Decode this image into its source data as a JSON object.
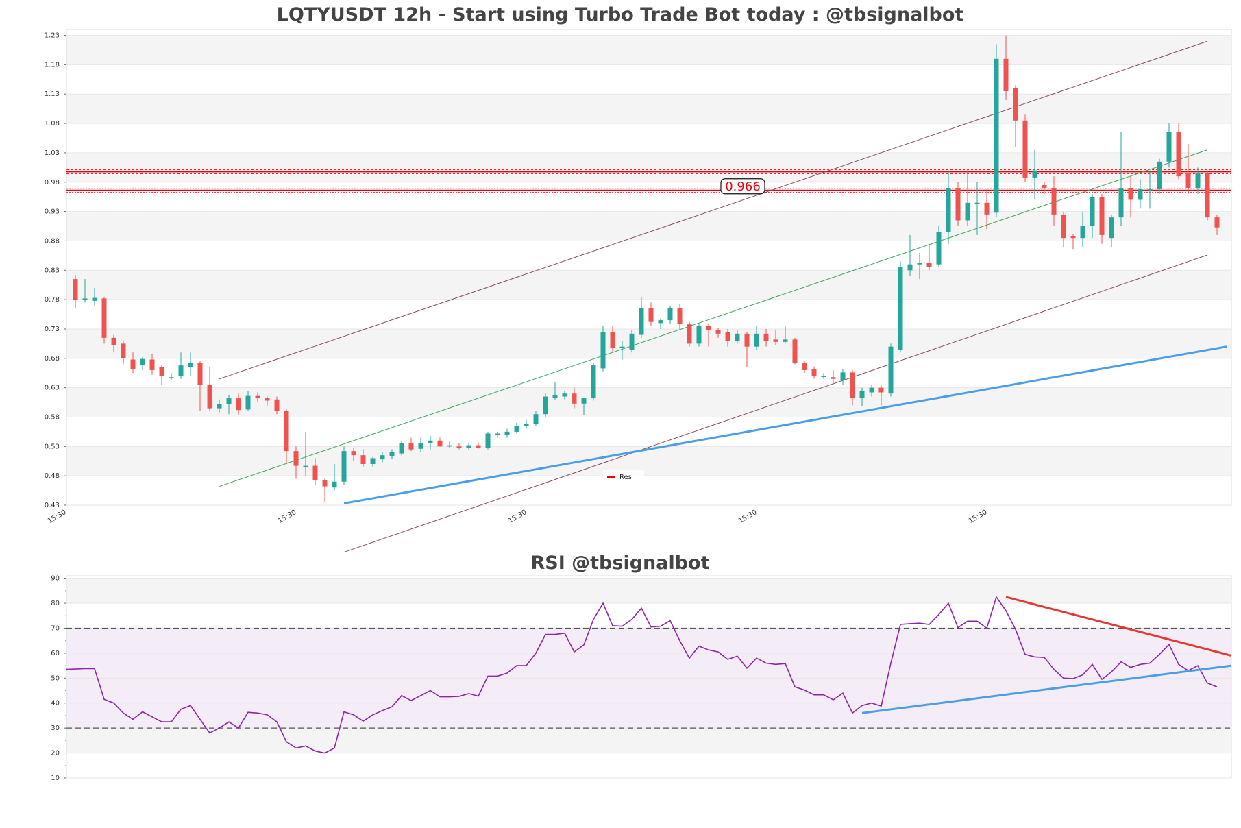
{
  "chart_data": [
    {
      "type": "candlestick",
      "title": "LQTYUSDT 12h - Start using Turbo Trade Bot today : @tbsignalbot",
      "ylim": [
        0.43,
        1.24
      ],
      "yticks": [
        "0.43",
        "0.48",
        "0.53",
        "0.58",
        "0.63",
        "0.68",
        "0.73",
        "0.78",
        "0.83",
        "0.88",
        "0.93",
        "0.98",
        "1.03",
        "1.08",
        "1.13",
        "1.18",
        "1.23"
      ],
      "xtick_labels": [
        "15:30",
        "15:30",
        "15:30",
        "15:30",
        "15:30"
      ],
      "xtick_index": [
        0,
        24,
        48,
        72,
        96
      ],
      "grid": true,
      "legend": {
        "placement": "lower-center",
        "entries": [
          "Res"
        ]
      },
      "resistance_label": "0.966",
      "resistance_levels": [
        0.966,
        0.998
      ],
      "colors": {
        "up": "#26a69a",
        "down": "#ef5350",
        "res": "#e8000b",
        "channel": "#8b4a5b",
        "mid": "#3aa655",
        "support": "#4a9ee8"
      },
      "candles": [
        [
          0.815,
          0.822,
          0.765,
          0.78
        ],
        [
          0.78,
          0.815,
          0.775,
          0.782
        ],
        [
          0.778,
          0.8,
          0.77,
          0.783
        ],
        [
          0.782,
          0.785,
          0.705,
          0.715
        ],
        [
          0.715,
          0.72,
          0.69,
          0.703
        ],
        [
          0.705,
          0.71,
          0.67,
          0.68
        ],
        [
          0.678,
          0.69,
          0.655,
          0.662
        ],
        [
          0.668,
          0.682,
          0.66,
          0.679
        ],
        [
          0.678,
          0.688,
          0.652,
          0.66
        ],
        [
          0.665,
          0.668,
          0.635,
          0.65
        ],
        [
          0.648,
          0.655,
          0.643,
          0.648
        ],
        [
          0.65,
          0.69,
          0.645,
          0.668
        ],
        [
          0.665,
          0.69,
          0.65,
          0.672
        ],
        [
          0.672,
          0.675,
          0.59,
          0.635
        ],
        [
          0.635,
          0.665,
          0.59,
          0.595
        ],
        [
          0.595,
          0.61,
          0.588,
          0.602
        ],
        [
          0.602,
          0.618,
          0.585,
          0.612
        ],
        [
          0.612,
          0.62,
          0.583,
          0.592
        ],
        [
          0.593,
          0.625,
          0.59,
          0.616
        ],
        [
          0.616,
          0.622,
          0.605,
          0.612
        ],
        [
          0.612,
          0.615,
          0.6,
          0.608
        ],
        [
          0.61,
          0.615,
          0.585,
          0.59
        ],
        [
          0.59,
          0.593,
          0.5,
          0.522
        ],
        [
          0.522,
          0.53,
          0.475,
          0.497
        ],
        [
          0.496,
          0.555,
          0.48,
          0.497
        ],
        [
          0.497,
          0.51,
          0.465,
          0.472
        ],
        [
          0.472,
          0.475,
          0.435,
          0.462
        ],
        [
          0.46,
          0.5,
          0.455,
          0.47
        ],
        [
          0.47,
          0.53,
          0.465,
          0.522
        ],
        [
          0.522,
          0.528,
          0.505,
          0.515
        ],
        [
          0.515,
          0.525,
          0.495,
          0.5
        ],
        [
          0.5,
          0.512,
          0.495,
          0.51
        ],
        [
          0.508,
          0.52,
          0.503,
          0.515
        ],
        [
          0.513,
          0.525,
          0.508,
          0.52
        ],
        [
          0.518,
          0.54,
          0.515,
          0.535
        ],
        [
          0.535,
          0.545,
          0.522,
          0.525
        ],
        [
          0.526,
          0.545,
          0.52,
          0.535
        ],
        [
          0.535,
          0.548,
          0.525,
          0.54
        ],
        [
          0.54,
          0.545,
          0.53,
          0.53
        ],
        [
          0.53,
          0.538,
          0.528,
          0.532
        ],
        [
          0.53,
          0.535,
          0.525,
          0.528
        ],
        [
          0.528,
          0.535,
          0.525,
          0.532
        ],
        [
          0.532,
          0.537,
          0.526,
          0.528
        ],
        [
          0.528,
          0.555,
          0.525,
          0.552
        ],
        [
          0.55,
          0.555,
          0.545,
          0.552
        ],
        [
          0.55,
          0.56,
          0.545,
          0.555
        ],
        [
          0.555,
          0.57,
          0.552,
          0.565
        ],
        [
          0.565,
          0.575,
          0.56,
          0.568
        ],
        [
          0.568,
          0.59,
          0.565,
          0.585
        ],
        [
          0.585,
          0.62,
          0.58,
          0.615
        ],
        [
          0.612,
          0.64,
          0.61,
          0.618
        ],
        [
          0.615,
          0.625,
          0.61,
          0.62
        ],
        [
          0.62,
          0.63,
          0.595,
          0.603
        ],
        [
          0.603,
          0.612,
          0.583,
          0.612
        ],
        [
          0.612,
          0.672,
          0.608,
          0.668
        ],
        [
          0.663,
          0.735,
          0.658,
          0.725
        ],
        [
          0.725,
          0.735,
          0.69,
          0.698
        ],
        [
          0.698,
          0.71,
          0.678,
          0.7
        ],
        [
          0.695,
          0.728,
          0.69,
          0.722
        ],
        [
          0.72,
          0.785,
          0.715,
          0.765
        ],
        [
          0.765,
          0.775,
          0.735,
          0.742
        ],
        [
          0.74,
          0.748,
          0.73,
          0.745
        ],
        [
          0.745,
          0.77,
          0.738,
          0.765
        ],
        [
          0.765,
          0.772,
          0.73,
          0.738
        ],
        [
          0.738,
          0.742,
          0.7,
          0.705
        ],
        [
          0.705,
          0.74,
          0.7,
          0.735
        ],
        [
          0.735,
          0.74,
          0.7,
          0.728
        ],
        [
          0.728,
          0.732,
          0.715,
          0.722
        ],
        [
          0.725,
          0.73,
          0.7,
          0.71
        ],
        [
          0.71,
          0.728,
          0.705,
          0.722
        ],
        [
          0.722,
          0.725,
          0.665,
          0.7
        ],
        [
          0.7,
          0.735,
          0.695,
          0.722
        ],
        [
          0.722,
          0.73,
          0.7,
          0.71
        ],
        [
          0.712,
          0.728,
          0.703,
          0.708
        ],
        [
          0.708,
          0.735,
          0.705,
          0.712
        ],
        [
          0.712,
          0.715,
          0.67,
          0.672
        ],
        [
          0.672,
          0.675,
          0.655,
          0.66
        ],
        [
          0.662,
          0.666,
          0.645,
          0.65
        ],
        [
          0.65,
          0.655,
          0.645,
          0.65
        ],
        [
          0.648,
          0.66,
          0.638,
          0.645
        ],
        [
          0.643,
          0.662,
          0.635,
          0.656
        ],
        [
          0.656,
          0.66,
          0.6,
          0.613
        ],
        [
          0.613,
          0.63,
          0.598,
          0.625
        ],
        [
          0.622,
          0.635,
          0.615,
          0.63
        ],
        [
          0.63,
          0.635,
          0.6,
          0.622
        ],
        [
          0.62,
          0.705,
          0.615,
          0.7
        ],
        [
          0.695,
          0.845,
          0.69,
          0.835
        ],
        [
          0.83,
          0.89,
          0.82,
          0.84
        ],
        [
          0.84,
          0.86,
          0.815,
          0.843
        ],
        [
          0.843,
          0.875,
          0.83,
          0.835
        ],
        [
          0.84,
          0.905,
          0.835,
          0.895
        ],
        [
          0.895,
          1.0,
          0.875,
          0.97
        ],
        [
          0.97,
          0.98,
          0.905,
          0.915
        ],
        [
          0.915,
          1.0,
          0.905,
          0.945
        ],
        [
          0.945,
          0.98,
          0.89,
          0.945
        ],
        [
          0.945,
          0.968,
          0.9,
          0.925
        ],
        [
          0.928,
          1.215,
          0.92,
          1.19
        ],
        [
          1.19,
          1.23,
          1.12,
          1.135
        ],
        [
          1.14,
          1.145,
          1.04,
          1.085
        ],
        [
          1.085,
          1.095,
          0.98,
          0.988
        ],
        [
          0.988,
          1.035,
          0.95,
          1.0
        ],
        [
          0.975,
          0.98,
          0.96,
          0.97
        ],
        [
          0.97,
          0.99,
          0.905,
          0.925
        ],
        [
          0.925,
          0.93,
          0.87,
          0.885
        ],
        [
          0.888,
          0.892,
          0.865,
          0.885
        ],
        [
          0.885,
          0.93,
          0.87,
          0.905
        ],
        [
          0.905,
          0.96,
          0.885,
          0.955
        ],
        [
          0.955,
          0.96,
          0.875,
          0.89
        ],
        [
          0.885,
          0.925,
          0.87,
          0.92
        ],
        [
          0.92,
          1.065,
          0.905,
          0.97
        ],
        [
          0.97,
          0.99,
          0.92,
          0.95
        ],
        [
          0.95,
          0.985,
          0.935,
          0.968
        ],
        [
          0.968,
          1.0,
          0.935,
          0.968
        ],
        [
          0.968,
          1.02,
          0.96,
          1.015
        ],
        [
          1.015,
          1.08,
          1.005,
          1.065
        ],
        [
          1.065,
          1.08,
          0.985,
          0.99
        ],
        [
          0.995,
          1.045,
          0.96,
          0.97
        ],
        [
          0.97,
          1.005,
          0.96,
          0.995
        ],
        [
          0.995,
          1.0,
          0.915,
          0.92
        ],
        [
          0.92,
          0.925,
          0.89,
          0.903
        ]
      ],
      "lines": {
        "channel_upper": [
          [
            15,
            0.645
          ],
          [
            118,
            1.22
          ]
        ],
        "channel_lower": [
          [
            28,
            0.35
          ],
          [
            118,
            0.856
          ]
        ],
        "channel_mid": [
          [
            15,
            0.462
          ],
          [
            118,
            1.035
          ]
        ],
        "support": [
          [
            28,
            0.433
          ],
          [
            120,
            0.7
          ]
        ]
      }
    },
    {
      "type": "line",
      "title": "RSI @tbsignalbot",
      "ylim": [
        10,
        91
      ],
      "yticks": [
        "10",
        "20",
        "30",
        "40",
        "50",
        "60",
        "70",
        "80",
        "90"
      ],
      "thresholds": [
        30,
        70
      ],
      "colors": {
        "rsi": "#8e24aa",
        "down": "#e53935",
        "up": "#4a9ee8",
        "threshold": "#555555"
      },
      "rsi": [
        53.5,
        53.8,
        53.8,
        41.5,
        40.0,
        36.0,
        33.5,
        36.5,
        34.5,
        32.5,
        32.5,
        37.5,
        39.0,
        33.5,
        28.0,
        30.0,
        32.5,
        30.0,
        36.3,
        36.0,
        35.3,
        32.5,
        24.5,
        22.0,
        22.8,
        20.8,
        20.0,
        22.0,
        36.5,
        35.3,
        32.8,
        35.3,
        37.0,
        38.5,
        43.0,
        41.0,
        43.0,
        45.0,
        42.5,
        42.5,
        42.7,
        43.8,
        42.8,
        50.8,
        50.8,
        52.0,
        55.0,
        55.0,
        60.0,
        67.5,
        67.5,
        68.0,
        60.5,
        63.3,
        73.5,
        80.0,
        71.0,
        70.8,
        73.5,
        78.0,
        70.5,
        70.8,
        73.0,
        65.0,
        58.0,
        62.8,
        61.3,
        60.5,
        57.5,
        58.8,
        54.0,
        58.0,
        56.0,
        55.5,
        55.8,
        46.5,
        45.2,
        43.3,
        43.3,
        41.3,
        44.0,
        36.0,
        39.0,
        40.0,
        38.8,
        56.0,
        71.5,
        71.8,
        72.0,
        71.5,
        75.5,
        80.0,
        70.2,
        72.8,
        72.8,
        70.0,
        82.5,
        77.0,
        69.5,
        59.5,
        58.5,
        58.3,
        53.5,
        50.0,
        49.8,
        51.3,
        55.5,
        49.5,
        52.5,
        56.5,
        54.3,
        55.5,
        56.0,
        59.5,
        63.5,
        55.5,
        53.0,
        55.0,
        48.0,
        46.5
      ],
      "lines": {
        "rsi_resistance": [
          [
            97,
            82.5
          ],
          [
            121,
            59.0
          ]
        ],
        "rsi_support": [
          [
            82,
            36.0
          ],
          [
            121,
            55.0
          ]
        ]
      }
    }
  ]
}
